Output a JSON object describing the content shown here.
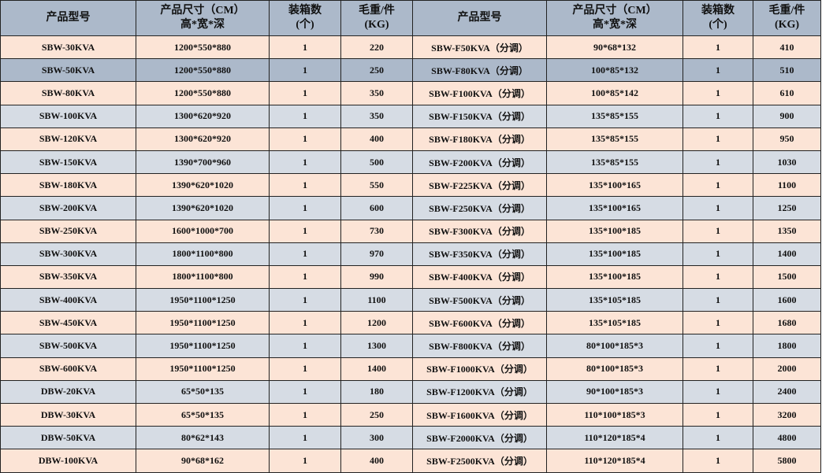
{
  "colors": {
    "header": "#acb9ca",
    "peach": "#fce4d6",
    "blue": "#d6dce4",
    "dark": "#acb9ca"
  },
  "headers": [
    {
      "line1": "产品型号",
      "line2": ""
    },
    {
      "line1": "产品尺寸（CM）",
      "line2": "高*宽*深"
    },
    {
      "line1": "装箱数",
      "line2": "(个)"
    },
    {
      "line1": "毛重/件",
      "line2": "(KG)"
    },
    {
      "line1": "产品型号",
      "line2": ""
    },
    {
      "line1": "产品尺寸（CM）",
      "line2": "高*宽*深"
    },
    {
      "line1": "装箱数",
      "line2": "(个)"
    },
    {
      "line1": "毛重/件",
      "line2": "(KG)"
    }
  ],
  "rows": [
    {
      "shade": "peach",
      "cells": [
        "SBW-30KVA",
        "1200*550*880",
        "1",
        "220",
        "SBW-F50KVA（分调）",
        "90*68*132",
        "1",
        "410"
      ]
    },
    {
      "shade": "dark",
      "cells": [
        "SBW-50KVA",
        "1200*550*880",
        "1",
        "250",
        "SBW-F80KVA（分调）",
        "100*85*132",
        "1",
        "510"
      ]
    },
    {
      "shade": "peach",
      "cells": [
        "SBW-80KVA",
        "1200*550*880",
        "1",
        "350",
        "SBW-F100KVA（分调）",
        "100*85*142",
        "1",
        "610"
      ]
    },
    {
      "shade": "blue",
      "cells": [
        "SBW-100KVA",
        "1300*620*920",
        "1",
        "350",
        "SBW-F150KVA（分调）",
        "135*85*155",
        "1",
        "900"
      ]
    },
    {
      "shade": "peach",
      "cells": [
        "SBW-120KVA",
        "1300*620*920",
        "1",
        "400",
        "SBW-F180KVA（分调）",
        "135*85*155",
        "1",
        "950"
      ]
    },
    {
      "shade": "blue",
      "cells": [
        "SBW-150KVA",
        "1390*700*960",
        "1",
        "500",
        "SBW-F200KVA（分调）",
        "135*85*155",
        "1",
        "1030"
      ]
    },
    {
      "shade": "peach",
      "cells": [
        "SBW-180KVA",
        "1390*620*1020",
        "1",
        "550",
        "SBW-F225KVA（分调）",
        "135*100*165",
        "1",
        "1100"
      ]
    },
    {
      "shade": "blue",
      "cells": [
        "SBW-200KVA",
        "1390*620*1020",
        "1",
        "600",
        "SBW-F250KVA（分调）",
        "135*100*165",
        "1",
        "1250"
      ]
    },
    {
      "shade": "peach",
      "cells": [
        "SBW-250KVA",
        "1600*1000*700",
        "1",
        "730",
        "SBW-F300KVA（分调）",
        "135*100*185",
        "1",
        "1350"
      ]
    },
    {
      "shade": "blue",
      "cells": [
        "SBW-300KVA",
        "1800*1100*800",
        "1",
        "970",
        "SBW-F350KVA（分调）",
        "135*100*185",
        "1",
        "1400"
      ]
    },
    {
      "shade": "peach",
      "cells": [
        "SBW-350KVA",
        "1800*1100*800",
        "1",
        "990",
        "SBW-F400KVA（分调）",
        "135*100*185",
        "1",
        "1500"
      ]
    },
    {
      "shade": "blue",
      "cells": [
        "SBW-400KVA",
        "1950*1100*1250",
        "1",
        "1100",
        "SBW-F500KVA（分调）",
        "135*105*185",
        "1",
        "1600"
      ]
    },
    {
      "shade": "peach",
      "cells": [
        "SBW-450KVA",
        "1950*1100*1250",
        "1",
        "1200",
        "SBW-F600KVA（分调）",
        "135*105*185",
        "1",
        "1680"
      ]
    },
    {
      "shade": "blue",
      "cells": [
        "SBW-500KVA",
        "1950*1100*1250",
        "1",
        "1300",
        "SBW-F800KVA（分调）",
        "80*100*185*3",
        "1",
        "1800"
      ]
    },
    {
      "shade": "peach",
      "cells": [
        "SBW-600KVA",
        "1950*1100*1250",
        "1",
        "1400",
        "SBW-F1000KVA（分调）",
        "80*100*185*3",
        "1",
        "2000"
      ]
    },
    {
      "shade": "blue",
      "cells": [
        "DBW-20KVA",
        "65*50*135",
        "1",
        "180",
        "SBW-F1200KVA（分调）",
        "90*100*185*3",
        "1",
        "2400"
      ]
    },
    {
      "shade": "peach",
      "cells": [
        "DBW-30KVA",
        "65*50*135",
        "1",
        "250",
        "SBW-F1600KVA（分调）",
        "110*100*185*3",
        "1",
        "3200"
      ]
    },
    {
      "shade": "blue",
      "cells": [
        "DBW-50KVA",
        "80*62*143",
        "1",
        "300",
        "SBW-F2000KVA（分调）",
        "110*120*185*4",
        "1",
        "4800"
      ]
    },
    {
      "shade": "peach",
      "cells": [
        "DBW-100KVA",
        "90*68*162",
        "1",
        "400",
        "SBW-F2500KVA（分调）",
        "110*120*185*4",
        "1",
        "5800"
      ]
    }
  ]
}
